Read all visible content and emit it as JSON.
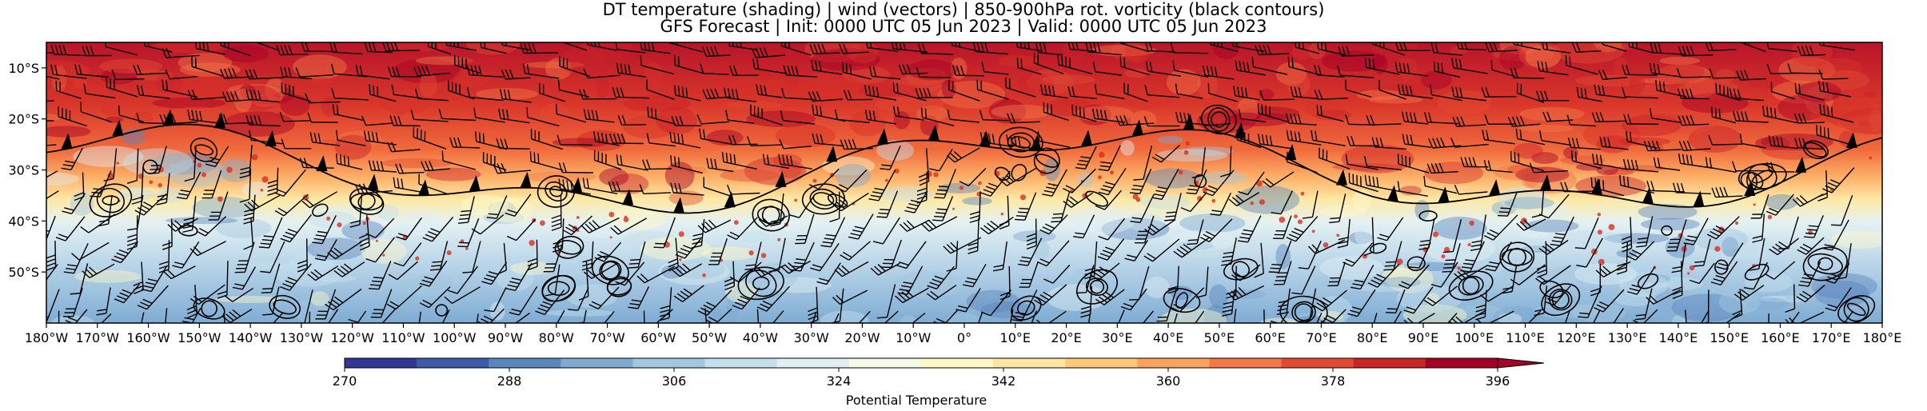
{
  "title": {
    "line1": "DT temperature (shading) | wind (vectors) | 850-900hPa rot. vorticity (black contours)",
    "line2": "GFS Forecast | Init: 0000 UTC 05 Jun 2023 | Valid: 0000 UTC 05 Jun 2023"
  },
  "map": {
    "projection": "PlateCarree",
    "lon_range": [
      -180,
      180
    ],
    "lat_range": [
      -60,
      -5
    ],
    "x_ticks": [
      "180°W",
      "170°W",
      "160°W",
      "150°W",
      "140°W",
      "130°W",
      "120°W",
      "110°W",
      "100°W",
      "90°W",
      "80°W",
      "70°W",
      "60°W",
      "50°W",
      "40°W",
      "30°W",
      "20°W",
      "10°W",
      "0°",
      "10°E",
      "20°E",
      "30°E",
      "40°E",
      "50°E",
      "60°E",
      "70°E",
      "80°E",
      "90°E",
      "100°E",
      "110°E",
      "120°E",
      "130°E",
      "140°E",
      "150°E",
      "160°E",
      "170°E",
      "180°E"
    ],
    "y_ticks": [
      "10°S",
      "20°S",
      "30°S",
      "40°S",
      "50°S"
    ],
    "y_tick_values": [
      -10,
      -20,
      -30,
      -40,
      -50
    ]
  },
  "colorbar": {
    "label": "Potential Temperature",
    "min": 270,
    "max": 396,
    "tick_labels": [
      "270",
      "288",
      "306",
      "324",
      "342",
      "360",
      "378",
      "396"
    ],
    "colors": [
      "#313695",
      "#3d5ba6",
      "#5a86bd",
      "#7ea9d1",
      "#a4c7e1",
      "#c6dfee",
      "#e1eff4",
      "#f4f9e8",
      "#fef8c8",
      "#fee5a3",
      "#fdca7c",
      "#fba35e",
      "#f57748",
      "#e34a33",
      "#c92228",
      "#a50026"
    ],
    "extend": "max"
  }
}
